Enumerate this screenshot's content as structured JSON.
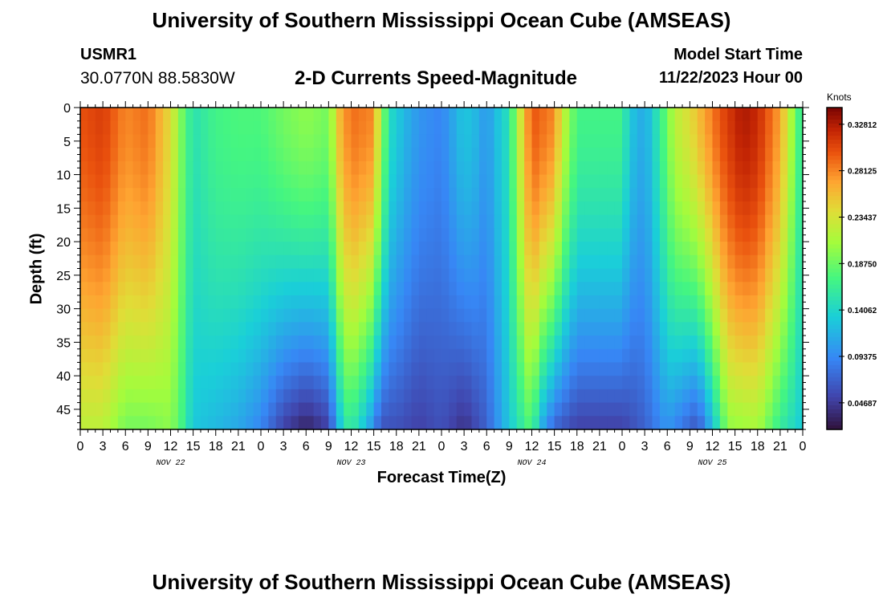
{
  "header": {
    "title": "University of Southern Mississippi Ocean Cube (AMSEAS)",
    "station": "USMR1",
    "coords": "30.0770N  88.5830W",
    "subtitle": "2-D Currents Speed-Magnitude",
    "model_start_label": "Model Start Time",
    "model_start_value": "11/22/2023 Hour 00"
  },
  "footer": {
    "title": "University of Southern Mississippi Ocean Cube (AMSEAS)"
  },
  "colorbar": {
    "units": "Knots",
    "tick_labels": [
      "0.32812",
      "0.28125",
      "0.23437",
      "0.18750",
      "0.14062",
      "0.09375",
      "0.04687"
    ],
    "tick_values": [
      0.32812,
      0.28125,
      0.23437,
      0.1875,
      0.14062,
      0.09375,
      0.04687
    ],
    "range": [
      0.02,
      0.345
    ]
  },
  "chart_data": {
    "type": "heatmap",
    "title": "2-D Currents Speed-Magnitude",
    "xlabel": "Forecast Time(Z)",
    "ylabel": "Depth (ft)",
    "x_range_hours": [
      0,
      96
    ],
    "y_range_ft": [
      0,
      48
    ],
    "x_tick_labels": [
      "0",
      "3",
      "6",
      "9",
      "12",
      "15",
      "18",
      "21",
      "0",
      "3",
      "6",
      "9",
      "12",
      "15",
      "18",
      "21",
      "0",
      "3",
      "6",
      "9",
      "12",
      "15",
      "18",
      "21",
      "0",
      "3",
      "6",
      "9",
      "12",
      "15",
      "18",
      "21",
      "0"
    ],
    "x_tick_hours": [
      0,
      3,
      6,
      9,
      12,
      15,
      18,
      21,
      24,
      27,
      30,
      33,
      36,
      39,
      42,
      45,
      48,
      51,
      54,
      57,
      60,
      63,
      66,
      69,
      72,
      75,
      78,
      81,
      84,
      87,
      90,
      93,
      96
    ],
    "day_labels": [
      {
        "label": "NOV 22",
        "hour": 12
      },
      {
        "label": "NOV 23",
        "hour": 36
      },
      {
        "label": "NOV 24",
        "hour": 60
      },
      {
        "label": "NOV 25",
        "hour": 84
      }
    ],
    "y_tick_labels": [
      "0",
      "5",
      "10",
      "15",
      "20",
      "25",
      "30",
      "35",
      "40",
      "45"
    ],
    "y_tick_values": [
      0,
      5,
      10,
      15,
      20,
      25,
      30,
      35,
      40,
      45
    ],
    "surface_speed_knots": [
      [
        0,
        0.3
      ],
      [
        3,
        0.31
      ],
      [
        6,
        0.28
      ],
      [
        9,
        0.29
      ],
      [
        12,
        0.24
      ],
      [
        13.5,
        0.19
      ],
      [
        15,
        0.15
      ],
      [
        18,
        0.17
      ],
      [
        21,
        0.175
      ],
      [
        24,
        0.175
      ],
      [
        27,
        0.19
      ],
      [
        30,
        0.2
      ],
      [
        33,
        0.19
      ],
      [
        34.5,
        0.26
      ],
      [
        36,
        0.29
      ],
      [
        39,
        0.28
      ],
      [
        40,
        0.2
      ],
      [
        41.5,
        0.14
      ],
      [
        43,
        0.12
      ],
      [
        45,
        0.1
      ],
      [
        48,
        0.09
      ],
      [
        51,
        0.13
      ],
      [
        52.5,
        0.12
      ],
      [
        54,
        0.1
      ],
      [
        55,
        0.12
      ],
      [
        57,
        0.15
      ],
      [
        58,
        0.21
      ],
      [
        60,
        0.3
      ],
      [
        63,
        0.28
      ],
      [
        64,
        0.23
      ],
      [
        66,
        0.17
      ],
      [
        69,
        0.17
      ],
      [
        72,
        0.17
      ],
      [
        73,
        0.13
      ],
      [
        75,
        0.11
      ],
      [
        77,
        0.16
      ],
      [
        79,
        0.22
      ],
      [
        81,
        0.24
      ],
      [
        83,
        0.27
      ],
      [
        85,
        0.3
      ],
      [
        88,
        0.33
      ],
      [
        90,
        0.32
      ],
      [
        93,
        0.27
      ],
      [
        96,
        0.15
      ]
    ],
    "bottom_speed_knots": [
      [
        0,
        0.22
      ],
      [
        3,
        0.22
      ],
      [
        6,
        0.19
      ],
      [
        9,
        0.19
      ],
      [
        12,
        0.2
      ],
      [
        13.5,
        0.17
      ],
      [
        15,
        0.13
      ],
      [
        18,
        0.12
      ],
      [
        21,
        0.11
      ],
      [
        24,
        0.09
      ],
      [
        27,
        0.05
      ],
      [
        30,
        0.03
      ],
      [
        33,
        0.05
      ],
      [
        35,
        0.15
      ],
      [
        36,
        0.16
      ],
      [
        38,
        0.12
      ],
      [
        40,
        0.06
      ],
      [
        42,
        0.06
      ],
      [
        45,
        0.05
      ],
      [
        48,
        0.06
      ],
      [
        51,
        0.04
      ],
      [
        54,
        0.07
      ],
      [
        57,
        0.13
      ],
      [
        60,
        0.18
      ],
      [
        61,
        0.12
      ],
      [
        63,
        0.07
      ],
      [
        66,
        0.05
      ],
      [
        69,
        0.05
      ],
      [
        72,
        0.05
      ],
      [
        75,
        0.07
      ],
      [
        78,
        0.1
      ],
      [
        80,
        0.08
      ],
      [
        82,
        0.06
      ],
      [
        84,
        0.12
      ],
      [
        86,
        0.2
      ],
      [
        90,
        0.21
      ],
      [
        93,
        0.16
      ],
      [
        96,
        0.13
      ]
    ]
  }
}
